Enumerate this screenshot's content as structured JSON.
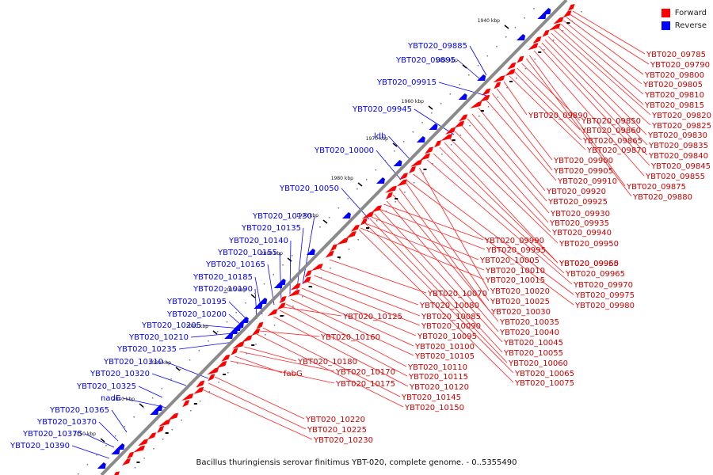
{
  "legend": {
    "forward_label": "Forward",
    "reverse_label": "Reverse",
    "forward_color": "#ff0000",
    "reverse_color": "#0000ff"
  },
  "caption": "Bacillus thuringiensis serovar finitimus YBT-020, complete genome. - 0..5355490",
  "ticks": [
    "1940 kbp",
    "1950 kbp",
    "1960 kbp",
    "1970 kbp",
    "1980 kbp",
    "1990 kbp",
    "2000 kbp",
    "2010 kbp",
    "2020 kbp",
    "2030 kbp",
    "2040 kbp",
    "2050 kbp"
  ],
  "reverse_labels": [
    "YBT020_09885",
    "YBT020_09895",
    "YBT020_09915",
    "YBT020_09945",
    "ldh",
    "YBT020_10000",
    "YBT020_10050",
    "YBT020_10130",
    "YBT020_10135",
    "YBT020_10140",
    "YBT020_10155",
    "YBT020_10165",
    "YBT020_10185",
    "YBT020_10190",
    "YBT020_10195",
    "YBT020_10200",
    "YBT020_10205",
    "YBT020_10210",
    "YBT020_10235",
    "YBT020_10310",
    "YBT020_10320",
    "YBT020_10325",
    "nadE",
    "YBT020_10365",
    "YBT020_10370",
    "YBT020_10375",
    "YBT020_10390"
  ],
  "forward_labels": [
    "YBT020_09785",
    "YBT020_09790",
    "YBT020_09800",
    "YBT020_09805",
    "YBT020_09810",
    "YBT020_09815",
    "YBT020_09820",
    "YBT020_09890",
    "YBT020_09850",
    "YBT020_09825",
    "YBT020_09860",
    "YBT020_09830",
    "YBT020_09865",
    "YBT020_09835",
    "YBT020_09870",
    "YBT020_09840",
    "YBT020_09900",
    "YBT020_09845",
    "YBT020_09905",
    "YBT020_09855",
    "YBT020_09910",
    "YBT020_09875",
    "YBT020_09920",
    "YBT020_09880",
    "YBT020_09925",
    "YBT020_09930",
    "YBT020_09935",
    "YBT020_09940",
    "YBT020_09990",
    "YBT020_09950",
    "YBT020_09995",
    "YBT020_09955",
    "YBT020_10005",
    "YBT020_09960",
    "YBT020_10010",
    "YBT020_09965",
    "YBT020_10015",
    "YBT020_09970",
    "YBT020_10070",
    "YBT020_10020",
    "YBT020_09975",
    "YBT020_10080",
    "YBT020_10025",
    "YBT020_09980",
    "YBT020_10125",
    "YBT020_10085",
    "YBT020_10030",
    "YBT020_10090",
    "YBT020_10035",
    "YBT020_10160",
    "YBT020_10095",
    "YBT020_10040",
    "YBT020_10100",
    "YBT020_10045",
    "YBT020_10105",
    "YBT020_10055",
    "YBT020_10180",
    "YBT020_10110",
    "YBT020_10060",
    "fabG",
    "YBT020_10170",
    "YBT020_10115",
    "YBT020_10065",
    "YBT020_10175",
    "YBT020_10120",
    "YBT020_10075",
    "YBT020_10145",
    "YBT020_10150",
    "YBT020_10220",
    "YBT020_10225",
    "YBT020_10230"
  ]
}
